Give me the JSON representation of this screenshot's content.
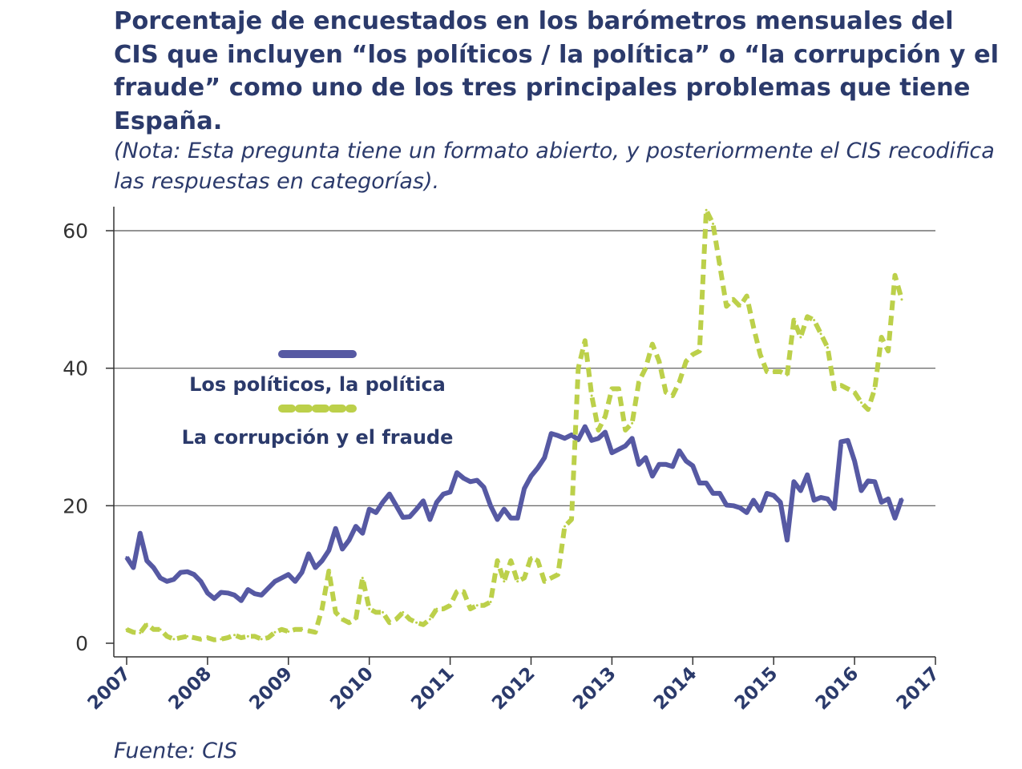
{
  "chart_data": {
    "type": "line",
    "title": "Porcentaje de encuestados en los barómetros mensuales del CIS que incluyen “los políticos / la política” o “la corrupción y el fraude” como uno de los tres principales problemas que tiene España.",
    "subtitle": "(Nota: Esta pregunta tiene un formato abierto, y posteriormente el CIS recodifica las respuestas en categorías).",
    "source": "Fuente: CIS",
    "xlabel": "",
    "ylabel": "",
    "x_start": "2007-01",
    "x_frequency": "monthly",
    "xlim": [
      2007,
      2017
    ],
    "ylim": [
      0,
      63
    ],
    "x_ticks": [
      "2007",
      "2008",
      "2009",
      "2010",
      "2011",
      "2012",
      "2013",
      "2014",
      "2015",
      "2016",
      "2017"
    ],
    "y_ticks": [
      0,
      20,
      40,
      60
    ],
    "grid": "horizontal",
    "legend_placement": "center-left",
    "series": [
      {
        "name": "Los políticos, la política",
        "color": "#5659a3",
        "style": "solid",
        "values": [
          12.5,
          11,
          16,
          12,
          11,
          9.5,
          9,
          9.3,
          10.3,
          10.4,
          10,
          9,
          7.3,
          6.5,
          7.4,
          7.3,
          7,
          6.2,
          7.8,
          7.2,
          7,
          8,
          9,
          9.5,
          10,
          9,
          10.3,
          13,
          11,
          12,
          13.5,
          16.7,
          13.7,
          15,
          17,
          16,
          19.5,
          19,
          20.5,
          21.7,
          20,
          18.3,
          18.4,
          19.5,
          20.7,
          18,
          20.5,
          21.7,
          22,
          24.8,
          24,
          23.5,
          23.7,
          22.7,
          20,
          18,
          19.5,
          18.2,
          18.2,
          22.5,
          24.3,
          25.5,
          27,
          30.5,
          30.2,
          29.8,
          30.3,
          29.6,
          31.5,
          29.5,
          29.8,
          30.7,
          27.7,
          28.2,
          28.7,
          29.8,
          26,
          27,
          24.3,
          26,
          26,
          25.7,
          28,
          26.5,
          25.8,
          23.3,
          23.3,
          21.8,
          21.8,
          20.1,
          20,
          19.7,
          19,
          20.8,
          19.3,
          21.8,
          21.5,
          20.5,
          15,
          23.5,
          22.2,
          24.5,
          20.8,
          21.2,
          21,
          19.6,
          29.3,
          29.5,
          26.5,
          22.2,
          23.6,
          23.5,
          20.5,
          21,
          18.2,
          21
        ]
      },
      {
        "name": "La corrupción y el fraude",
        "color": "#bcd04a",
        "style": "dashed",
        "values": [
          2,
          1.6,
          1.5,
          2.8,
          2,
          2,
          1,
          0.6,
          0.8,
          1,
          0.8,
          0.6,
          0.8,
          0.5,
          0.6,
          0.8,
          1.2,
          0.8,
          1,
          1,
          0.6,
          0.8,
          1.6,
          2,
          1.7,
          2,
          2,
          1.8,
          1.6,
          5,
          10.5,
          4.5,
          3.5,
          3,
          3.5,
          9.5,
          5,
          4.5,
          4.5,
          3,
          3.5,
          4.5,
          3.5,
          3,
          2.7,
          3.5,
          5,
          5,
          5.5,
          7.5,
          7.5,
          5,
          5.5,
          5.5,
          6,
          12,
          9,
          12,
          9,
          9.5,
          12.5,
          12,
          9,
          9.5,
          10,
          17,
          18,
          40,
          44,
          36,
          31,
          33,
          37,
          37,
          31,
          32,
          38,
          40,
          43.5,
          41,
          36.5,
          36,
          38,
          41,
          42,
          42.5,
          63,
          61,
          55,
          49,
          50,
          49,
          50.5,
          46,
          42,
          39.5,
          39.5,
          39.5,
          39,
          47,
          44.5,
          47.5,
          47,
          45,
          43,
          37,
          37.5,
          37,
          36.5,
          35,
          34,
          37,
          44.5,
          42.5,
          53.5,
          50
        ]
      }
    ]
  }
}
